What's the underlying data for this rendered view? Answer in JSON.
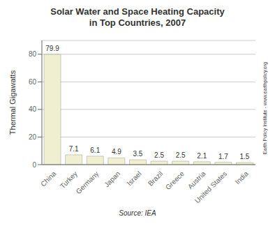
{
  "chart_data": {
    "type": "bar",
    "title": "Solar Water and Space Heating Capacity\nin Top Countries, 2007",
    "categories": [
      "China",
      "Turkey",
      "Germany",
      "Japan",
      "Israel",
      "Brazil",
      "Greece",
      "Austria",
      "United States",
      "India"
    ],
    "values": [
      79.9,
      7.1,
      6.1,
      4.9,
      3.5,
      2.5,
      2.5,
      2.1,
      1.7,
      1.5
    ],
    "color": "#f0f0d0",
    "ylabel": "Thermal Gigawatts",
    "y2label": "Earth Policy Institute - www.earthpolicy.org",
    "annotations": [
      "Source: IEA"
    ],
    "ylim": [
      0,
      90
    ],
    "yticks": [
      0,
      20,
      40,
      60,
      80
    ],
    "grid": true,
    "data_labels": true
  }
}
